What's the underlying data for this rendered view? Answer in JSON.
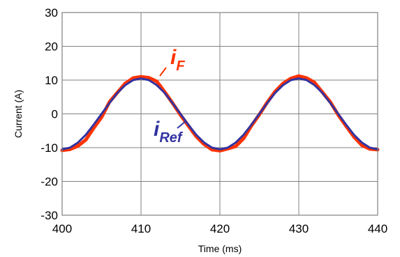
{
  "chart_data": {
    "type": "line",
    "title": "",
    "xlabel": "Time (ms)",
    "ylabel": "Current (A)",
    "xlim": [
      400,
      440
    ],
    "ylim": [
      -30,
      30
    ],
    "x_ticks": [
      400,
      410,
      420,
      430,
      440
    ],
    "y_ticks": [
      30,
      20,
      10,
      0,
      -10,
      -20,
      -30
    ],
    "grid": true,
    "series": [
      {
        "name": "i_F",
        "label_main": "i",
        "label_sub": "F",
        "color": "#ff3300",
        "x": [
          400,
          401,
          402,
          403,
          404,
          405,
          406,
          407,
          408,
          409,
          410,
          411,
          412,
          413,
          414,
          415,
          416,
          417,
          418,
          419,
          420,
          421,
          422,
          423,
          424,
          425,
          426,
          427,
          428,
          429,
          430,
          431,
          432,
          433,
          434,
          435,
          436,
          437,
          438,
          439,
          440
        ],
        "y": [
          -10.8,
          -10.5,
          -9.5,
          -7.7,
          -4.2,
          -1.0,
          3.5,
          6.3,
          9.0,
          10.6,
          11.0,
          10.7,
          9.6,
          6.5,
          3.2,
          -0.3,
          -3.5,
          -6.7,
          -9.0,
          -10.6,
          -10.9,
          -10.3,
          -9.6,
          -7.3,
          -3.5,
          -0.2,
          3.4,
          6.6,
          9.0,
          10.5,
          11.2,
          10.6,
          9.3,
          6.4,
          3.5,
          -0.3,
          -3.6,
          -6.8,
          -9.3,
          -10.4,
          -10.6
        ]
      },
      {
        "name": "i_Ref",
        "label_main": "i",
        "label_sub": "Ref",
        "color": "#3333a0",
        "x": [
          400,
          401,
          402,
          403,
          404,
          405,
          406,
          407,
          408,
          409,
          410,
          411,
          412,
          413,
          414,
          415,
          416,
          417,
          418,
          419,
          420,
          421,
          422,
          423,
          424,
          425,
          426,
          427,
          428,
          429,
          430,
          431,
          432,
          433,
          434,
          435,
          436,
          437,
          438,
          439,
          440
        ],
        "y": [
          -10.5,
          -10.0,
          -8.5,
          -6.2,
          -3.2,
          0.0,
          3.2,
          6.2,
          8.5,
          10.0,
          10.5,
          10.0,
          8.5,
          6.2,
          3.2,
          0.0,
          -3.2,
          -6.2,
          -8.5,
          -10.0,
          -10.5,
          -10.0,
          -8.5,
          -6.2,
          -3.2,
          0.0,
          3.2,
          6.2,
          8.5,
          10.0,
          10.5,
          10.0,
          8.5,
          6.2,
          3.2,
          0.0,
          -3.2,
          -6.2,
          -8.5,
          -10.0,
          -10.5
        ]
      }
    ]
  }
}
